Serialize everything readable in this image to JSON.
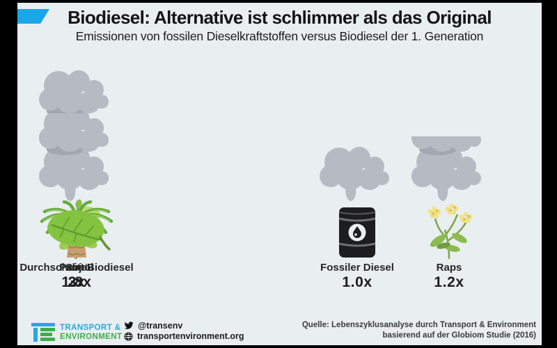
{
  "header": {
    "title": "Biodiesel: Alternative ist schlimmer als das Original",
    "subtitle": "Emissionen von fossilen Dieselkraftstoffen versus Biodiesel der 1. Generation",
    "accent_color": "#1aa7e8"
  },
  "chart_data": {
    "type": "bar",
    "subtype": "pictogram-smoke-clouds",
    "unit": "emissions relative to fossil diesel",
    "categories": [
      "Fossiler Diesel",
      "Raps",
      "Soja",
      "Palmöl",
      "Durchschnitt Biodiesel"
    ],
    "values": [
      1.0,
      1.2,
      2,
      3,
      1.8
    ],
    "series": [
      {
        "label": "Fossiler Diesel",
        "value": 1.0,
        "value_label": "1.0x",
        "icon": "oil-barrel-icon"
      },
      {
        "label": "Raps",
        "value": 1.2,
        "value_label": "1.2x",
        "icon": "rapeseed-flower-icon"
      },
      {
        "label": "Soja",
        "value": 2,
        "value_label": "2x",
        "icon": "soy-plant-icon"
      },
      {
        "label": "Palmöl",
        "value": 3,
        "value_label": "3x",
        "icon": "palm-tree-icon"
      },
      {
        "label": "Durchschnitt Biodiesel",
        "value": 1.8,
        "value_label": "1.8x",
        "icon": "leaf-icon"
      }
    ],
    "pictogram": "smoke-cloud",
    "cloud_color": "#b6bac2",
    "cloud_shadow_color": "#a3a7b0",
    "background_color": "#e9eef1",
    "legend_position": "none",
    "grid": false
  },
  "footer": {
    "brand": {
      "line1": "TRANSPORT &",
      "line2": "ENVIRONMENT",
      "blue": "#29a8df",
      "green": "#3fae49"
    },
    "twitter_handle": "@transenv",
    "website": "transportenvironment.org",
    "source_line1": "Quelle: Lebenszyklusanalyse durch Transport & Environment",
    "source_line2": "basierend auf der Globiom Studie (2016)"
  }
}
